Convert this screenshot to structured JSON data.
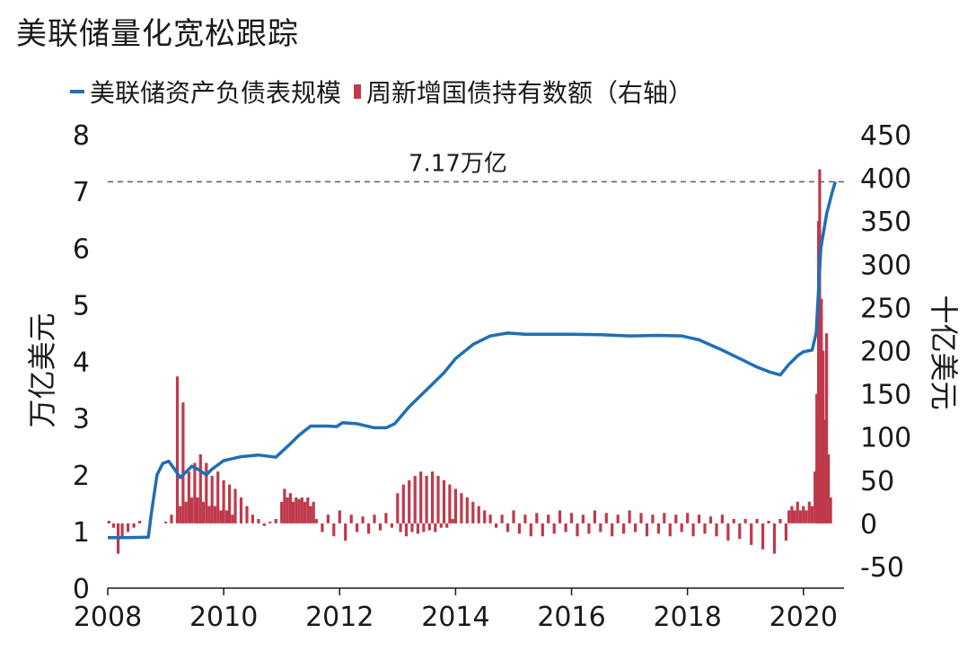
{
  "title": "美联储量化宽松跟踪",
  "legend": [
    {
      "label": "美联储资产负债表规模",
      "color": "#1f6fb5",
      "kind": "line"
    },
    {
      "label": "周新增国债持有数额（右轴）",
      "color": "#c0394b",
      "kind": "bar"
    }
  ],
  "chart_data": {
    "type": "line+bar",
    "x_axis": {
      "range": [
        2008,
        2020.7
      ],
      "ticks": [
        "2008",
        "2010",
        "2012",
        "2014",
        "2016",
        "2018",
        "2020"
      ]
    },
    "y_left": {
      "label": "万亿美元",
      "range": [
        0,
        8
      ],
      "ticks": [
        "0",
        "1",
        "2",
        "3",
        "4",
        "5",
        "6",
        "7",
        "8"
      ]
    },
    "y_right": {
      "label": "十亿美元",
      "range": [
        -75,
        450
      ],
      "ticks": [
        "-50",
        "0",
        "50",
        "100",
        "150",
        "200",
        "250",
        "300",
        "350",
        "400",
        "450"
      ]
    },
    "annotation": {
      "text": "7.17万亿",
      "y": 7.17
    },
    "series": [
      {
        "name": "美联储资产负债表规模",
        "axis": "left",
        "color": "#1f6fb5",
        "points": [
          [
            2008.0,
            0.89
          ],
          [
            2008.3,
            0.89
          ],
          [
            2008.7,
            0.9
          ],
          [
            2008.75,
            1.3
          ],
          [
            2008.85,
            2.0
          ],
          [
            2008.95,
            2.2
          ],
          [
            2009.05,
            2.24
          ],
          [
            2009.15,
            2.1
          ],
          [
            2009.25,
            1.95
          ],
          [
            2009.35,
            2.05
          ],
          [
            2009.45,
            2.15
          ],
          [
            2009.55,
            2.1
          ],
          [
            2009.7,
            2.0
          ],
          [
            2009.8,
            2.1
          ],
          [
            2010.0,
            2.25
          ],
          [
            2010.3,
            2.32
          ],
          [
            2010.6,
            2.35
          ],
          [
            2010.9,
            2.31
          ],
          [
            2011.1,
            2.5
          ],
          [
            2011.3,
            2.7
          ],
          [
            2011.5,
            2.86
          ],
          [
            2011.8,
            2.86
          ],
          [
            2011.95,
            2.85
          ],
          [
            2012.05,
            2.92
          ],
          [
            2012.3,
            2.9
          ],
          [
            2012.6,
            2.83
          ],
          [
            2012.8,
            2.83
          ],
          [
            2012.95,
            2.9
          ],
          [
            2013.2,
            3.2
          ],
          [
            2013.5,
            3.5
          ],
          [
            2013.8,
            3.8
          ],
          [
            2014.0,
            4.05
          ],
          [
            2014.3,
            4.3
          ],
          [
            2014.6,
            4.45
          ],
          [
            2014.9,
            4.5
          ],
          [
            2015.2,
            4.48
          ],
          [
            2016.0,
            4.48
          ],
          [
            2016.5,
            4.47
          ],
          [
            2017.0,
            4.45
          ],
          [
            2017.5,
            4.46
          ],
          [
            2017.9,
            4.45
          ],
          [
            2018.2,
            4.38
          ],
          [
            2018.6,
            4.2
          ],
          [
            2018.9,
            4.05
          ],
          [
            2019.2,
            3.9
          ],
          [
            2019.4,
            3.82
          ],
          [
            2019.6,
            3.76
          ],
          [
            2019.75,
            3.95
          ],
          [
            2019.9,
            4.1
          ],
          [
            2020.0,
            4.17
          ],
          [
            2020.15,
            4.2
          ],
          [
            2020.22,
            4.5
          ],
          [
            2020.3,
            6.0
          ],
          [
            2020.4,
            6.6
          ],
          [
            2020.5,
            7.0
          ],
          [
            2020.55,
            7.17
          ]
        ]
      },
      {
        "name": "周新增国债持有数额（右轴）",
        "axis": "right",
        "color": "#c0394b",
        "bars": [
          [
            2008.02,
            3
          ],
          [
            2008.1,
            -5
          ],
          [
            2008.18,
            -35
          ],
          [
            2008.25,
            -15
          ],
          [
            2008.35,
            -10
          ],
          [
            2008.45,
            -5
          ],
          [
            2008.55,
            3
          ],
          [
            2009.0,
            2
          ],
          [
            2009.1,
            10
          ],
          [
            2009.2,
            170
          ],
          [
            2009.25,
            20
          ],
          [
            2009.3,
            140
          ],
          [
            2009.35,
            25
          ],
          [
            2009.4,
            60
          ],
          [
            2009.45,
            30
          ],
          [
            2009.5,
            70
          ],
          [
            2009.55,
            30
          ],
          [
            2009.6,
            80
          ],
          [
            2009.65,
            25
          ],
          [
            2009.7,
            70
          ],
          [
            2009.75,
            20
          ],
          [
            2009.8,
            55
          ],
          [
            2009.85,
            20
          ],
          [
            2009.9,
            60
          ],
          [
            2009.95,
            15
          ],
          [
            2010.0,
            50
          ],
          [
            2010.05,
            15
          ],
          [
            2010.1,
            45
          ],
          [
            2010.15,
            10
          ],
          [
            2010.2,
            40
          ],
          [
            2010.3,
            30
          ],
          [
            2010.4,
            20
          ],
          [
            2010.5,
            10
          ],
          [
            2010.6,
            5
          ],
          [
            2010.7,
            -3
          ],
          [
            2010.8,
            2
          ],
          [
            2010.9,
            5
          ],
          [
            2011.0,
            25
          ],
          [
            2011.05,
            40
          ],
          [
            2011.1,
            30
          ],
          [
            2011.15,
            35
          ],
          [
            2011.2,
            25
          ],
          [
            2011.25,
            30
          ],
          [
            2011.3,
            28
          ],
          [
            2011.35,
            30
          ],
          [
            2011.4,
            25
          ],
          [
            2011.45,
            30
          ],
          [
            2011.5,
            20
          ],
          [
            2011.55,
            25
          ],
          [
            2011.6,
            5
          ],
          [
            2011.7,
            -10
          ],
          [
            2011.8,
            10
          ],
          [
            2011.9,
            -15
          ],
          [
            2012.0,
            15
          ],
          [
            2012.1,
            -20
          ],
          [
            2012.2,
            10
          ],
          [
            2012.3,
            -10
          ],
          [
            2012.4,
            8
          ],
          [
            2012.5,
            -12
          ],
          [
            2012.6,
            10
          ],
          [
            2012.7,
            -8
          ],
          [
            2012.8,
            12
          ],
          [
            2012.9,
            -5
          ],
          [
            2013.0,
            35
          ],
          [
            2013.05,
            -10
          ],
          [
            2013.1,
            45
          ],
          [
            2013.15,
            -15
          ],
          [
            2013.2,
            50
          ],
          [
            2013.25,
            -10
          ],
          [
            2013.3,
            55
          ],
          [
            2013.35,
            -12
          ],
          [
            2013.4,
            60
          ],
          [
            2013.45,
            -10
          ],
          [
            2013.5,
            55
          ],
          [
            2013.55,
            -8
          ],
          [
            2013.6,
            60
          ],
          [
            2013.65,
            -10
          ],
          [
            2013.7,
            55
          ],
          [
            2013.75,
            -5
          ],
          [
            2013.8,
            50
          ],
          [
            2013.85,
            -5
          ],
          [
            2013.9,
            45
          ],
          [
            2013.95,
            5
          ],
          [
            2014.0,
            40
          ],
          [
            2014.1,
            35
          ],
          [
            2014.2,
            30
          ],
          [
            2014.3,
            25
          ],
          [
            2014.4,
            20
          ],
          [
            2014.5,
            15
          ],
          [
            2014.6,
            10
          ],
          [
            2014.7,
            -5
          ],
          [
            2014.8,
            10
          ],
          [
            2014.9,
            -10
          ],
          [
            2015.0,
            15
          ],
          [
            2015.1,
            -12
          ],
          [
            2015.2,
            10
          ],
          [
            2015.3,
            -15
          ],
          [
            2015.4,
            12
          ],
          [
            2015.5,
            -15
          ],
          [
            2015.6,
            10
          ],
          [
            2015.7,
            -12
          ],
          [
            2015.8,
            15
          ],
          [
            2015.9,
            -10
          ],
          [
            2016.0,
            12
          ],
          [
            2016.1,
            -15
          ],
          [
            2016.2,
            10
          ],
          [
            2016.3,
            -12
          ],
          [
            2016.4,
            15
          ],
          [
            2016.5,
            -10
          ],
          [
            2016.6,
            12
          ],
          [
            2016.7,
            -15
          ],
          [
            2016.8,
            10
          ],
          [
            2016.9,
            -12
          ],
          [
            2017.0,
            15
          ],
          [
            2017.1,
            -10
          ],
          [
            2017.2,
            12
          ],
          [
            2017.3,
            -15
          ],
          [
            2017.4,
            10
          ],
          [
            2017.5,
            -12
          ],
          [
            2017.6,
            12
          ],
          [
            2017.7,
            -15
          ],
          [
            2017.8,
            10
          ],
          [
            2017.9,
            -10
          ],
          [
            2018.0,
            12
          ],
          [
            2018.1,
            -15
          ],
          [
            2018.2,
            10
          ],
          [
            2018.3,
            -12
          ],
          [
            2018.4,
            8
          ],
          [
            2018.5,
            -15
          ],
          [
            2018.6,
            10
          ],
          [
            2018.7,
            -20
          ],
          [
            2018.8,
            5
          ],
          [
            2018.9,
            -18
          ],
          [
            2019.0,
            5
          ],
          [
            2019.1,
            -25
          ],
          [
            2019.2,
            5
          ],
          [
            2019.3,
            -30
          ],
          [
            2019.4,
            3
          ],
          [
            2019.5,
            -35
          ],
          [
            2019.6,
            5
          ],
          [
            2019.7,
            -20
          ],
          [
            2019.75,
            15
          ],
          [
            2019.8,
            20
          ],
          [
            2019.85,
            15
          ],
          [
            2019.9,
            25
          ],
          [
            2019.95,
            15
          ],
          [
            2020.0,
            20
          ],
          [
            2020.05,
            15
          ],
          [
            2020.1,
            25
          ],
          [
            2020.15,
            20
          ],
          [
            2020.2,
            60
          ],
          [
            2020.23,
            150
          ],
          [
            2020.26,
            350
          ],
          [
            2020.28,
            410
          ],
          [
            2020.31,
            260
          ],
          [
            2020.34,
            200
          ],
          [
            2020.37,
            120
          ],
          [
            2020.4,
            220
          ],
          [
            2020.43,
            80
          ],
          [
            2020.47,
            30
          ]
        ]
      }
    ]
  }
}
